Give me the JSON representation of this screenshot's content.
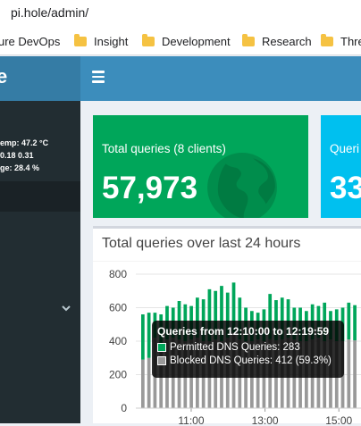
{
  "browser": {
    "url": "pi.hole/admin/",
    "bookmarks": [
      {
        "label": "ure DevOps"
      },
      {
        "label": "Insight"
      },
      {
        "label": "Development"
      },
      {
        "label": "Research"
      },
      {
        "label": "Thre"
      }
    ]
  },
  "header": {
    "logo_text": "e"
  },
  "sidebar": {
    "status_lines": [
      "emp: 47.2 °C",
      "0.18  0.31",
      "ge:  28.4 %"
    ]
  },
  "stats": {
    "total_queries": {
      "label": "Total queries (8 clients)",
      "value": "57,973"
    },
    "second": {
      "label": "Queri",
      "value": "33"
    }
  },
  "chart_data": {
    "type": "bar",
    "stacked": true,
    "title": "Total queries over last 24 hours",
    "ylim": [
      0,
      800
    ],
    "yticks": [
      "800",
      "600",
      "400",
      "200",
      "0"
    ],
    "xticks": [
      "11:00",
      "13:00",
      "15:00"
    ],
    "x_start_hour": 9.5,
    "x_hours_visible": 6.1,
    "series": [
      {
        "name": "Permitted DNS Queries",
        "color": "#00a65a",
        "values": [
          270,
          270,
          150,
          170,
          200,
          180,
          230,
          220,
          200,
          240,
          250,
          310,
          290,
          330,
          270,
          300,
          250,
          200,
          180,
          160,
          190,
          270,
          240,
          250,
          230,
          190,
          200,
          180,
          210,
          190,
          230,
          170,
          190,
          200,
          220,
          210
        ]
      },
      {
        "name": "Blocked DNS Queries",
        "color": "#999999",
        "values": [
          290,
          300,
          420,
          390,
          410,
          420,
          410,
          400,
          410,
          420,
          400,
          400,
          410,
          400,
          420,
          450,
          410,
          400,
          400,
          410,
          400,
          412,
          405,
          410,
          420,
          410,
          400,
          400,
          410,
          420,
          400,
          410,
          400,
          400,
          410,
          405
        ]
      }
    ]
  },
  "tooltip": {
    "title": "Queries from 12:10:00 to 12:19:59",
    "permitted": "Permitted DNS Queries: 283",
    "blocked": "Blocked DNS Queries: 412 (59.3%)"
  },
  "colors": {
    "green": "#00a65a",
    "blue": "#00c0ef",
    "navbar": "#3c8dbc",
    "sidebar": "#222d32"
  }
}
